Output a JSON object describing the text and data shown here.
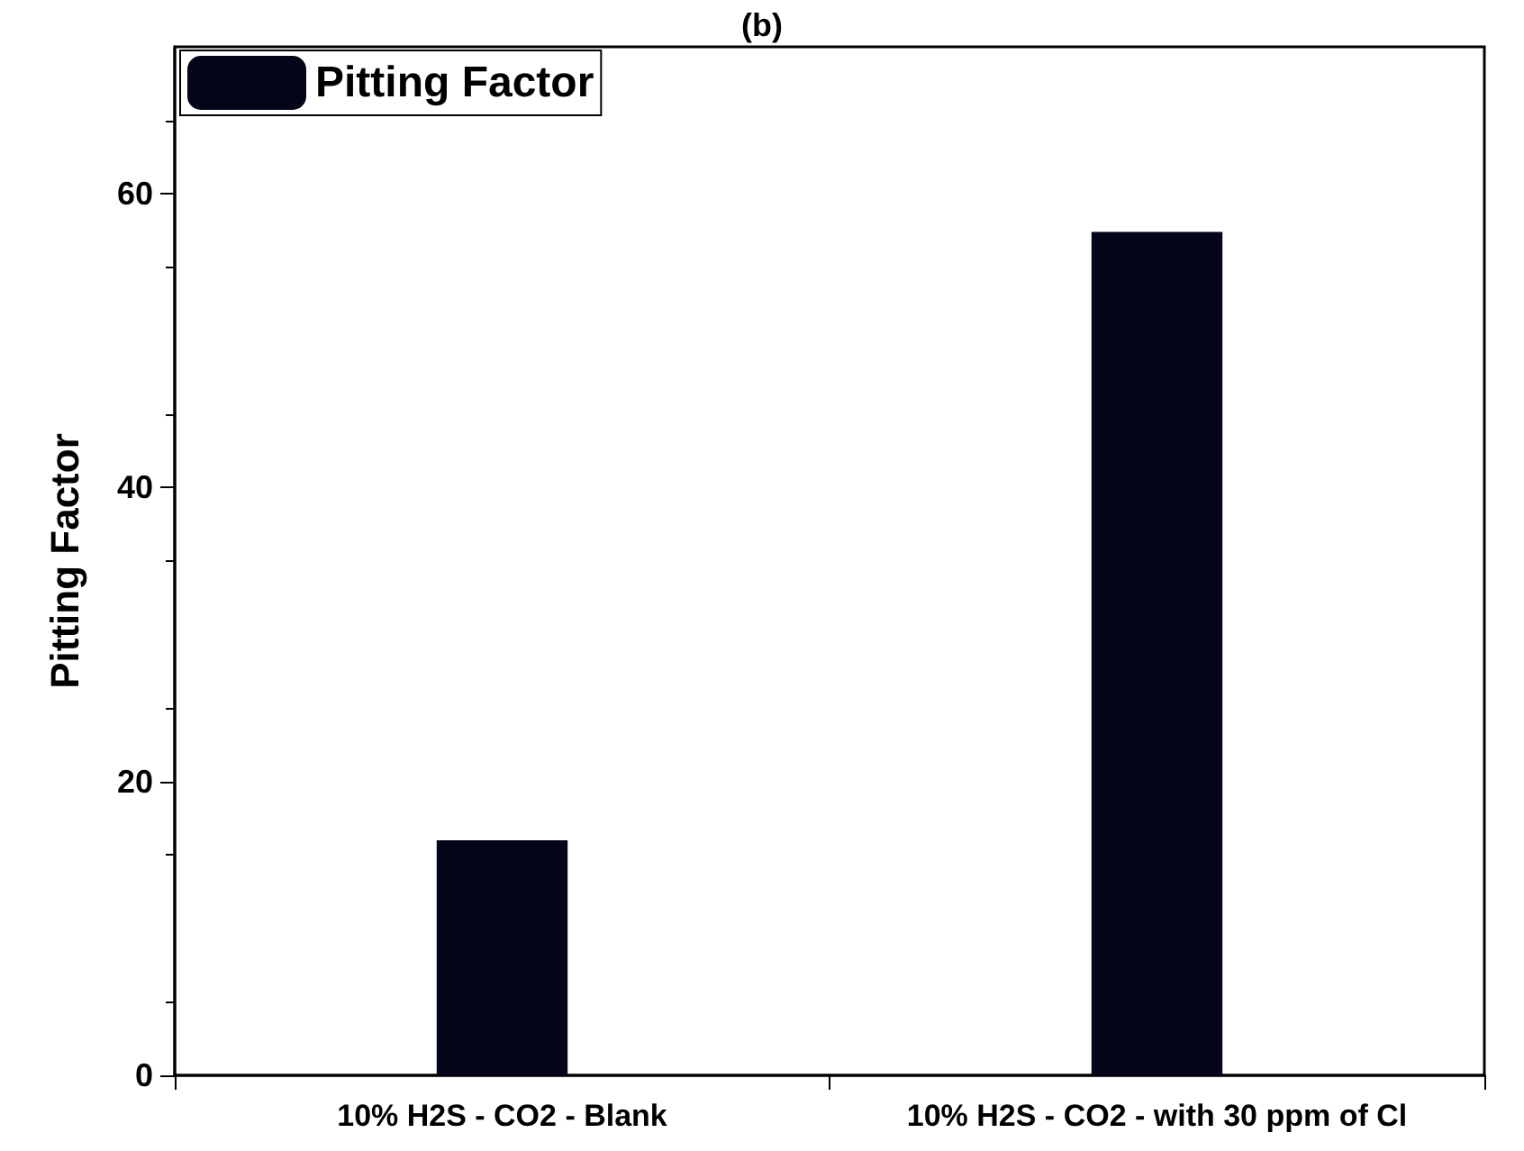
{
  "chart_data": {
    "type": "bar",
    "title": "(b)",
    "ylabel": "Pitting Factor",
    "categories": [
      "10% H2S - CO2 - Blank",
      "10% H2S - CO2 - with 30 ppm of Cl"
    ],
    "series": [
      {
        "name": "Pitting Factor",
        "color": "#05051a",
        "values": [
          16,
          57.4
        ]
      }
    ],
    "ylim": [
      0,
      70
    ],
    "yticks": [
      0,
      20,
      40,
      60
    ],
    "grid": false,
    "legend": "top left"
  }
}
